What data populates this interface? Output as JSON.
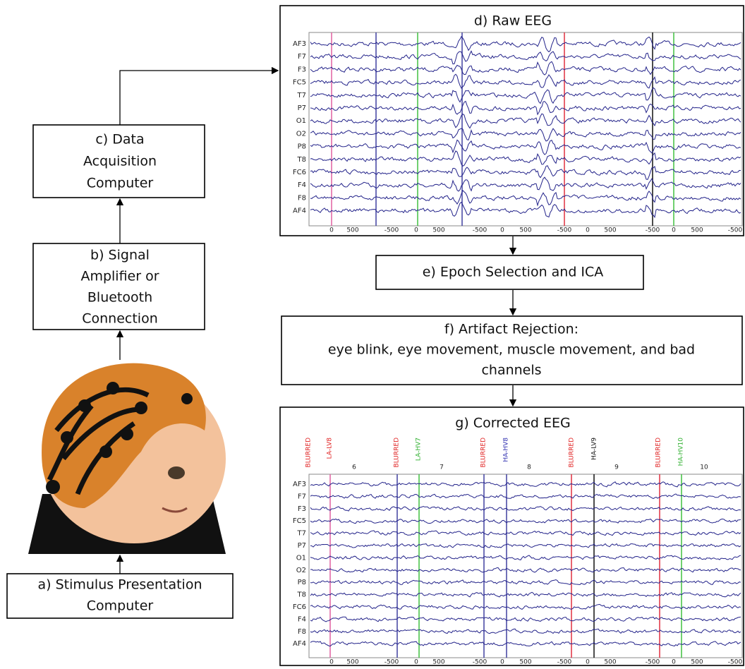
{
  "nodes": [
    {
      "lines": [
        "a) Stimulus Presentation",
        "Computer"
      ]
    },
    {
      "lines": [
        "b) Signal",
        "Amplifier or",
        "Bluetooth",
        "Connection"
      ]
    },
    {
      "lines": [
        "c) Data",
        "Acquisition",
        "Computer"
      ]
    },
    {
      "lines": [
        "e) Epoch Selection and ICA"
      ]
    },
    {
      "lines": [
        "f) Artifact Rejection:",
        "eye blink, eye movement, muscle movement, and bad",
        "channels"
      ]
    }
  ],
  "raw_eeg": {
    "title": "d) Raw EEG",
    "channels": [
      "AF3",
      "F7",
      "F3",
      "FC5",
      "T7",
      "P7",
      "O1",
      "O2",
      "P8",
      "T8",
      "FC6",
      "F4",
      "F8",
      "AF4"
    ],
    "x_labels": [
      "0",
      "500",
      "-500",
      "0",
      "500",
      "-500",
      "0",
      "500",
      "-500",
      "0",
      "500",
      "-500",
      "0",
      "500",
      "-500"
    ]
  },
  "corrected_eeg": {
    "title": "g) Corrected EEG",
    "channels": [
      "AF3",
      "F7",
      "F3",
      "FC5",
      "T7",
      "P7",
      "O1",
      "O2",
      "P8",
      "T8",
      "FC6",
      "F4",
      "F8",
      "AF4"
    ],
    "event_labels": [
      "BLURRED",
      "LA-LV8",
      "BLURRED",
      "LA-HV7",
      "BLURRED",
      "HA-HV8",
      "BLURRED",
      "HA-LV9",
      "BLURRED",
      "HA-HV10"
    ],
    "epoch_numbers": [
      "6",
      "7",
      "8",
      "9",
      "10"
    ],
    "x_labels": [
      "0",
      "500",
      "-500",
      "0",
      "500",
      "-500",
      "0",
      "500",
      "-500",
      "0",
      "500",
      "-500",
      "0",
      "500",
      "-500"
    ]
  }
}
